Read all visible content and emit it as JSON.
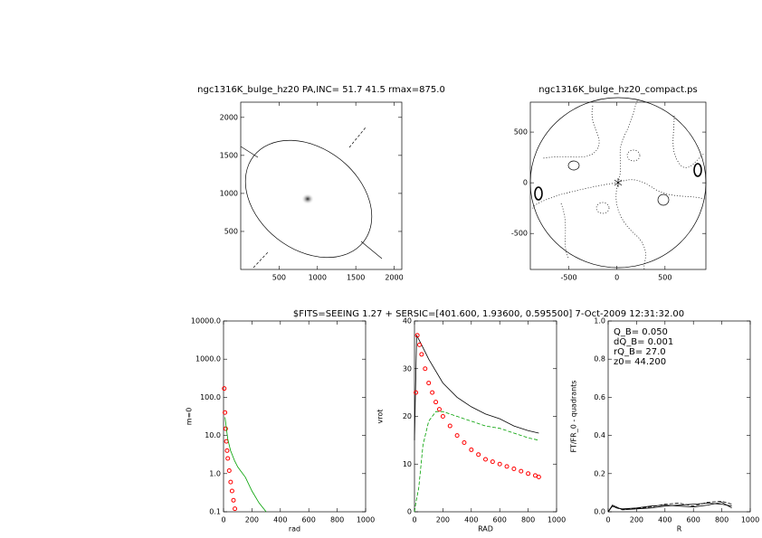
{
  "header": "$FITS=SEEING 1.27 + SERSIC=[401.600, 1.93600, 0.595500]   7-Oct-2009 12:31:32.00",
  "chart_data": [
    {
      "type": "map",
      "title": "ngc1316K_bulge_hz20 PA,INC= 51.7 41.5 rmax=875.0",
      "xlim": [
        0,
        2100
      ],
      "ylim": [
        0,
        2200
      ],
      "xticks": [
        500,
        1000,
        1500,
        2000
      ],
      "yticks": [
        500,
        1000,
        1500,
        2000
      ],
      "series": []
    },
    {
      "type": "map",
      "title": "ngc1316K_bulge_hz20_compact.ps",
      "xlim": [
        -900,
        925
      ],
      "ylim": [
        -855,
        795
      ],
      "xticks": [
        -500,
        0,
        500
      ],
      "yticks": [
        -500,
        0,
        500
      ],
      "series": []
    },
    {
      "type": "line",
      "xlabel": "rad",
      "ylabel": "m=0",
      "ylog": true,
      "xlim": [
        0,
        1000
      ],
      "ylim": [
        0.1,
        10000
      ],
      "xticks": [
        0,
        200,
        400,
        600,
        800,
        1000
      ],
      "yticks": [
        0.1,
        {
          "value": 1,
          "label": "1.0"
        },
        {
          "value": 10,
          "label": "10.0"
        },
        {
          "value": 100,
          "label": "100.0"
        },
        {
          "value": 1000,
          "label": "1000.0"
        },
        {
          "value": 10000,
          "label": "10000.0"
        }
      ],
      "series": [
        {
          "color": "#ff0000",
          "style": "markers",
          "x": [
            5,
            10,
            15,
            20,
            25,
            30,
            40,
            50,
            60,
            70,
            80
          ],
          "values": [
            170,
            40,
            15,
            7,
            4,
            2.5,
            1.2,
            0.6,
            0.35,
            0.2,
            0.12
          ]
        },
        {
          "color": "#00a000",
          "style": "line",
          "x": [
            10,
            30,
            50,
            77,
            100,
            154,
            200,
            250,
            300
          ],
          "values": [
            30,
            8,
            4,
            2.2,
            1.5,
            0.8,
            0.35,
            0.17,
            0.1
          ]
        }
      ]
    },
    {
      "type": "line",
      "xlabel": "RAD",
      "ylabel": "vrot",
      "xlim": [
        0,
        1000
      ],
      "ylim": [
        0,
        40
      ],
      "xticks": [
        0,
        200,
        400,
        600,
        800,
        1000
      ],
      "yticks": [
        0,
        10,
        20,
        30,
        40
      ],
      "series": [
        {
          "color": "#000000",
          "style": "line",
          "x": [
            0,
            15,
            50,
            100,
            200,
            300,
            400,
            500,
            600,
            700,
            800,
            875
          ],
          "values": [
            15,
            37,
            35,
            32,
            27,
            24,
            22,
            20.5,
            19.5,
            18,
            17,
            16.5
          ]
        },
        {
          "color": "#00a000",
          "style": "dashed",
          "x": [
            0,
            10,
            30,
            60,
            100,
            150,
            200,
            300,
            400,
            500,
            600,
            700,
            800,
            875
          ],
          "values": [
            0,
            2,
            5,
            14,
            19,
            21,
            21,
            20,
            19,
            18,
            17.5,
            16.5,
            15.5,
            15
          ]
        },
        {
          "color": "#ff0000",
          "style": "markers",
          "x": [
            10,
            20,
            35,
            50,
            75,
            100,
            125,
            150,
            175,
            200,
            250,
            300,
            350,
            400,
            450,
            500,
            550,
            600,
            650,
            700,
            750,
            800,
            850,
            875
          ],
          "values": [
            25,
            37,
            35,
            33,
            30,
            27,
            25,
            23,
            21.5,
            20,
            18,
            16,
            14.5,
            13,
            12,
            11,
            10.5,
            10,
            9.5,
            9,
            8.5,
            8,
            7.6,
            7.3
          ]
        }
      ]
    },
    {
      "type": "line",
      "xlabel": "R",
      "ylabel": "FT/FR_0 - quadrants",
      "xlim": [
        0,
        1000
      ],
      "ylim": [
        0,
        1
      ],
      "xticks": [
        0,
        200,
        400,
        600,
        800,
        1000
      ],
      "yticks": [
        {
          "value": 0,
          "label": "0.0"
        },
        0.2,
        0.4,
        0.6,
        0.8,
        {
          "value": 1,
          "label": "1.0"
        }
      ],
      "annotations": [
        "Q_B=  0.050",
        "dQ_B=  0.001",
        "rQ_B=  27.0",
        "z0= 44.200"
      ],
      "series": [
        {
          "color": "#000000",
          "style": "line",
          "x": [
            0,
            30,
            60,
            100,
            200,
            300,
            400,
            500,
            600,
            700,
            800,
            870
          ],
          "values": [
            0,
            0.035,
            0.025,
            0.01,
            0.015,
            0.02,
            0.03,
            0.035,
            0.04,
            0.045,
            0.04,
            0.03
          ]
        },
        {
          "color": "#000000",
          "style": "line",
          "x": [
            0,
            30,
            60,
            100,
            200,
            300,
            400,
            500,
            600,
            700,
            800,
            870
          ],
          "values": [
            0,
            0.03,
            0.02,
            0.015,
            0.02,
            0.03,
            0.035,
            0.03,
            0.025,
            0.035,
            0.05,
            0.02
          ]
        },
        {
          "color": "#000000",
          "style": "dashed",
          "x": [
            0,
            30,
            60,
            100,
            200,
            300,
            400,
            500,
            600,
            700,
            800,
            870
          ],
          "values": [
            0,
            0.03,
            0.02,
            0.012,
            0.018,
            0.025,
            0.04,
            0.045,
            0.03,
            0.05,
            0.055,
            0.04
          ]
        }
      ]
    }
  ]
}
